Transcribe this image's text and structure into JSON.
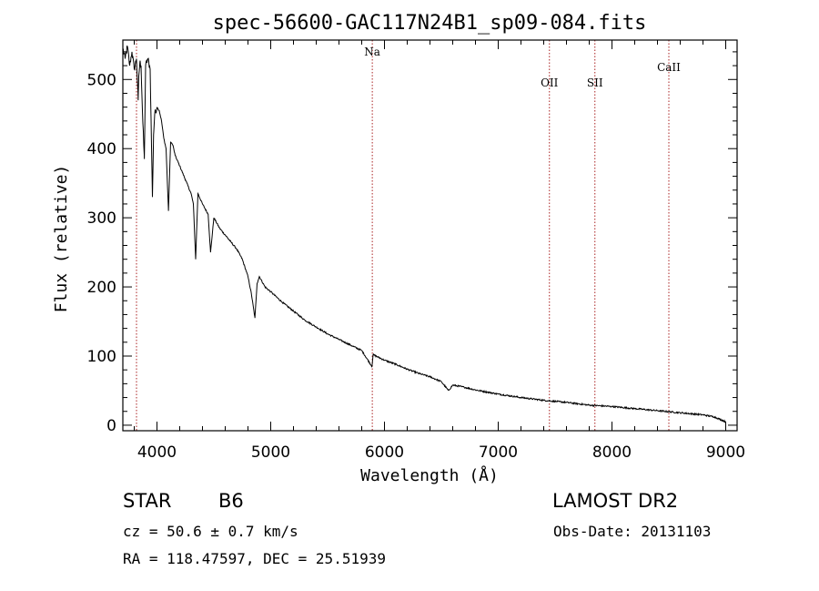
{
  "chart_data": {
    "type": "line",
    "title": "spec-56600-GAC117N24B1_sp09-084.fits",
    "xlabel": "Wavelength (Å)",
    "ylabel": "Flux (relative)",
    "xlim": [
      3700,
      9100
    ],
    "ylim": [
      -8,
      557
    ],
    "xticks": [
      4000,
      5000,
      6000,
      7000,
      8000,
      9000
    ],
    "yticks": [
      0,
      100,
      200,
      300,
      400,
      500
    ],
    "grid": false,
    "series": [
      {
        "color": "#000000",
        "x": [
          3700,
          3720,
          3740,
          3760,
          3780,
          3800,
          3820,
          3835,
          3840,
          3850,
          3860,
          3875,
          3889,
          3900,
          3920,
          3940,
          3960,
          3970,
          3980,
          4000,
          4020,
          4040,
          4060,
          4080,
          4101,
          4120,
          4140,
          4160,
          4200,
          4250,
          4300,
          4320,
          4340,
          4360,
          4400,
          4450,
          4471,
          4500,
          4550,
          4600,
          4650,
          4700,
          4750,
          4800,
          4830,
          4861,
          4880,
          4900,
          4950,
          5000,
          5100,
          5200,
          5300,
          5400,
          5500,
          5600,
          5700,
          5800,
          5890,
          5900,
          5950,
          6000,
          6100,
          6200,
          6300,
          6400,
          6500,
          6563,
          6600,
          6700,
          6800,
          6900,
          7000,
          7200,
          7400,
          7600,
          7800,
          8000,
          8200,
          8400,
          8600,
          8800,
          8900,
          9000
        ],
        "y": [
          545,
          530,
          548,
          520,
          540,
          515,
          530,
          470,
          505,
          525,
          520,
          440,
          385,
          520,
          530,
          515,
          330,
          420,
          450,
          460,
          455,
          440,
          415,
          400,
          310,
          410,
          405,
          390,
          375,
          355,
          335,
          320,
          240,
          335,
          320,
          305,
          250,
          300,
          285,
          275,
          265,
          255,
          240,
          215,
          190,
          155,
          205,
          215,
          200,
          193,
          178,
          165,
          152,
          142,
          132,
          124,
          116,
          108,
          85,
          102,
          98,
          94,
          88,
          81,
          75,
          70,
          63,
          50,
          58,
          55,
          51,
          48,
          45,
          40,
          36,
          33,
          29,
          27,
          24,
          21,
          18,
          15,
          12,
          5
        ]
      }
    ],
    "vlines": [
      {
        "x": 3820,
        "label": ""
      },
      {
        "x": 5893,
        "label": "Na"
      },
      {
        "x": 7450,
        "label": "OII"
      },
      {
        "x": 7850,
        "label": "SII"
      },
      {
        "x": 8500,
        "label": "CaII"
      }
    ],
    "vline_color": "#aa2222"
  },
  "info": {
    "object_type": "STAR",
    "subclass": "B6",
    "survey": "LAMOST DR2",
    "redshift": "cz = 50.6 ± 0.7 km/s",
    "obs_date": "Obs-Date: 20131103",
    "coords": "RA = 118.47597, DEC =  25.51939"
  }
}
